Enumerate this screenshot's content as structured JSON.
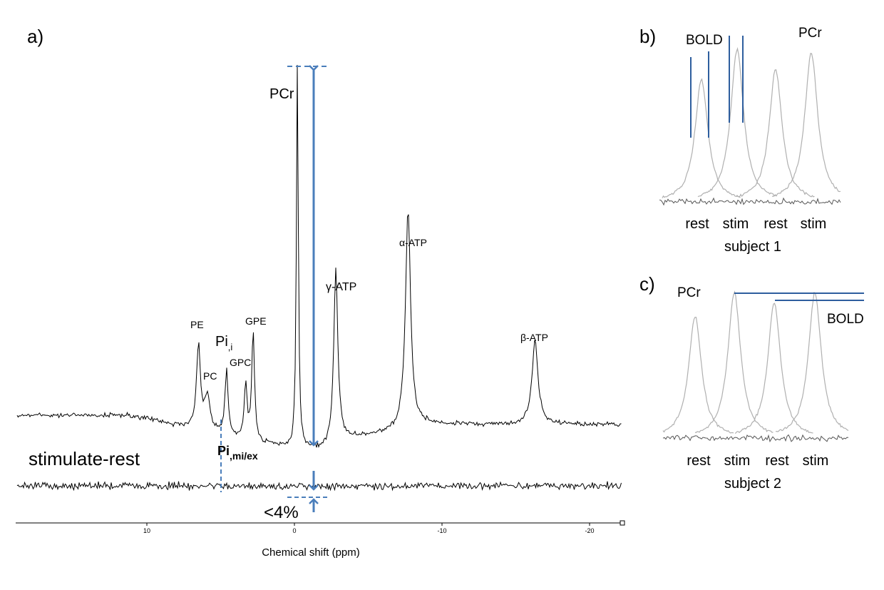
{
  "panels": {
    "a_label": "a)",
    "b_label": "b)",
    "c_label": "c)"
  },
  "chart_data": [
    {
      "type": "line",
      "panel": "a)",
      "xlabel": "Chemical shift (ppm)",
      "x_ticks": [
        10,
        0,
        -10,
        -20
      ],
      "xlim": [
        20,
        -23
      ],
      "x_reversed": true,
      "series": [
        {
          "name": "",
          "peaks": [
            {
              "label": "PE",
              "ppm": 6.5,
              "height": 0.22
            },
            {
              "label": "PC",
              "ppm": 5.9,
              "height": 0.09
            },
            {
              "label": "Pi,i",
              "ppm": 4.6,
              "height": 0.17
            },
            {
              "label": "GPC",
              "ppm": 3.3,
              "height": 0.14
            },
            {
              "label": "GPE",
              "ppm": 2.8,
              "height": 0.29
            },
            {
              "label": "PCr",
              "ppm": -0.2,
              "height": 1.0
            },
            {
              "label": "γ-ATP",
              "ppm": -2.8,
              "height": 0.45
            },
            {
              "label": "α-ATP",
              "ppm": -7.7,
              "height": 0.56
            },
            {
              "label": "β-ATP",
              "ppm": -16.3,
              "height": 0.22
            }
          ]
        },
        {
          "name": "stimulate-rest",
          "peaks": []
        }
      ],
      "annotations": {
        "pcr": "PCr",
        "gamma_atp": "γ-ATP",
        "alpha_atp": "α-ATP",
        "beta_atp": "β-ATP",
        "pe": "PE",
        "pc": "PC",
        "gpc": "GPC",
        "gpe": "GPE",
        "pi_i_main": "Pi",
        "pi_i_sub": ",i",
        "pi_mi_main": "Pi",
        "pi_mi_sub": ",mi/ex",
        "difference_label": "stimulate-rest",
        "percent": "<4%"
      },
      "colors": {
        "trace": "#000000",
        "arrow": "#4a7ebb"
      }
    },
    {
      "type": "line",
      "panel": "b)",
      "title": "subject 1",
      "conditions": [
        "rest",
        "stim",
        "rest",
        "stim"
      ],
      "peak_heights": [
        0.72,
        0.9,
        0.78,
        0.88
      ],
      "annotations": {
        "bold": "BOLD",
        "pcr": "PCr"
      },
      "colors": {
        "trace": "#b0b0b0",
        "marker": "#2e5e9e"
      }
    },
    {
      "type": "line",
      "panel": "c)",
      "title": "subject 2",
      "conditions": [
        "rest",
        "stim",
        "rest",
        "stim"
      ],
      "peak_heights": [
        0.82,
        0.98,
        0.91,
        0.98
      ],
      "annotations": {
        "bold": "BOLD",
        "pcr": "PCr"
      },
      "colors": {
        "trace": "#b0b0b0",
        "marker": "#2e5e9e"
      }
    }
  ]
}
